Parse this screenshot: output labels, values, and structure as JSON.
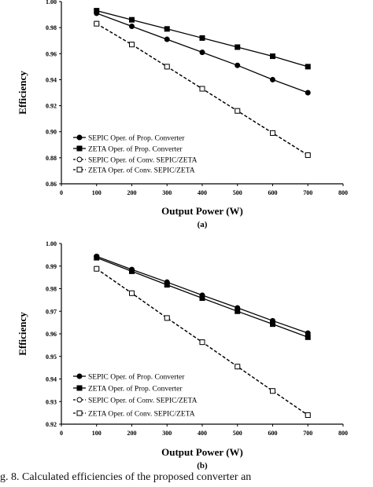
{
  "chart_data": [
    {
      "type": "line",
      "panel_label": "(a)",
      "xlabel": "Output Power (W)",
      "ylabel": "Efficiency",
      "xlim": [
        0,
        800
      ],
      "ylim": [
        0.86,
        1.0
      ],
      "xticks": [
        "0",
        "100",
        "200",
        "300",
        "400",
        "500",
        "600",
        "700",
        "800"
      ],
      "yticks": [
        "0.86",
        "0.88",
        "0.90",
        "0.92",
        "0.94",
        "0.96",
        "0.98",
        "1.00"
      ],
      "grid": false,
      "legend_position": "bottom-left",
      "x": [
        100,
        200,
        300,
        400,
        500,
        600,
        700
      ],
      "series": [
        {
          "name": "SEPIC Oper. of Prop. Converter",
          "marker": "circle-filled",
          "dashed": false,
          "values": [
            0.991,
            0.981,
            0.971,
            0.961,
            0.951,
            0.94,
            0.93
          ]
        },
        {
          "name": "ZETA Oper. of Prop. Converter",
          "marker": "square-filled",
          "dashed": false,
          "values": [
            0.993,
            0.986,
            0.979,
            0.972,
            0.965,
            0.958,
            0.95
          ]
        },
        {
          "name": "SEPIC Oper. of Conv. SEPIC/ZETA",
          "marker": "circle-open",
          "dashed": true,
          "values": [
            0.983,
            0.967,
            0.95,
            0.933,
            0.916,
            0.899,
            0.882
          ]
        },
        {
          "name": "ZETA Oper. of Conv. SEPIC/ZETA",
          "marker": "square-open",
          "dashed": true,
          "values": [
            0.983,
            0.967,
            0.95,
            0.933,
            0.916,
            0.899,
            0.882
          ]
        }
      ]
    },
    {
      "type": "line",
      "panel_label": "(b)",
      "xlabel": "Output Power (W)",
      "ylabel": "Efficiency",
      "xlim": [
        0,
        800
      ],
      "ylim": [
        0.92,
        1.0
      ],
      "xticks": [
        "0",
        "100",
        "200",
        "300",
        "400",
        "500",
        "600",
        "700",
        "800"
      ],
      "yticks": [
        "0.92",
        "0.93",
        "0.94",
        "0.95",
        "0.96",
        "0.97",
        "0.98",
        "0.99",
        "1.00"
      ],
      "grid": false,
      "legend_position": "bottom-left",
      "x": [
        100,
        200,
        300,
        400,
        500,
        600,
        700
      ],
      "series": [
        {
          "name": "SEPIC Oper. of Prop. Converter",
          "marker": "circle-filled",
          "dashed": false,
          "values": [
            0.9943,
            0.9885,
            0.9829,
            0.9771,
            0.9715,
            0.9658,
            0.9603
          ]
        },
        {
          "name": "ZETA Oper. of Prop. Converter",
          "marker": "square-filled",
          "dashed": false,
          "values": [
            0.9937,
            0.9877,
            0.9817,
            0.9758,
            0.97,
            0.9643,
            0.9585
          ]
        },
        {
          "name": "SEPIC Oper. of Conv. SEPIC/ZETA",
          "marker": "circle-open",
          "dashed": true,
          "values": [
            0.9888,
            0.978,
            0.967,
            0.9563,
            0.9455,
            0.9347,
            0.924
          ]
        },
        {
          "name": "ZETA Oper. of Conv. SEPIC/ZETA",
          "marker": "square-open",
          "dashed": true,
          "values": [
            0.9888,
            0.978,
            0.967,
            0.9563,
            0.9455,
            0.9347,
            0.924
          ]
        }
      ]
    }
  ],
  "caption": "g. 8.   Calculated efficiencies of the proposed converter an"
}
